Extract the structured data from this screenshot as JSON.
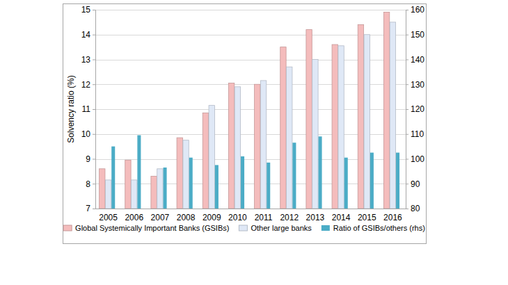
{
  "chart_data": {
    "type": "bar",
    "y_label": "Solvency ratio (%)",
    "categories": [
      "2005",
      "2006",
      "2007",
      "2008",
      "2009",
      "2010",
      "2011",
      "2012",
      "2013",
      "2014",
      "2015",
      "2016"
    ],
    "series": [
      {
        "name": "Global Systemically Important Banks (GSIBs)",
        "color": "#f4bcbc",
        "values": [
          8.6,
          8.95,
          8.3,
          9.85,
          10.85,
          12.05,
          12.0,
          13.5,
          14.2,
          13.6,
          14.4,
          14.9
        ]
      },
      {
        "name": "Other large banks",
        "color": "#dfe8f6",
        "values": [
          8.15,
          8.15,
          8.6,
          9.75,
          11.15,
          11.9,
          12.15,
          12.7,
          13.0,
          13.55,
          14.0,
          14.5
        ]
      },
      {
        "name": "Ratio of GSIBs/others (rhs)",
        "color": "#4bacc6",
        "axis": "y2",
        "values": [
          105,
          109.5,
          96.5,
          100.5,
          97.5,
          101,
          98.5,
          106.5,
          109,
          100.5,
          102.5,
          102.5
        ]
      }
    ],
    "ylim": [
      7,
      15
    ],
    "yticks": [
      7,
      8,
      9,
      10,
      11,
      12,
      13,
      14,
      15
    ],
    "y2lim": [
      80,
      160
    ],
    "y2ticks": [
      80,
      90,
      100,
      110,
      120,
      130,
      140,
      150,
      160
    ],
    "grid": true,
    "legend": "bottom"
  }
}
